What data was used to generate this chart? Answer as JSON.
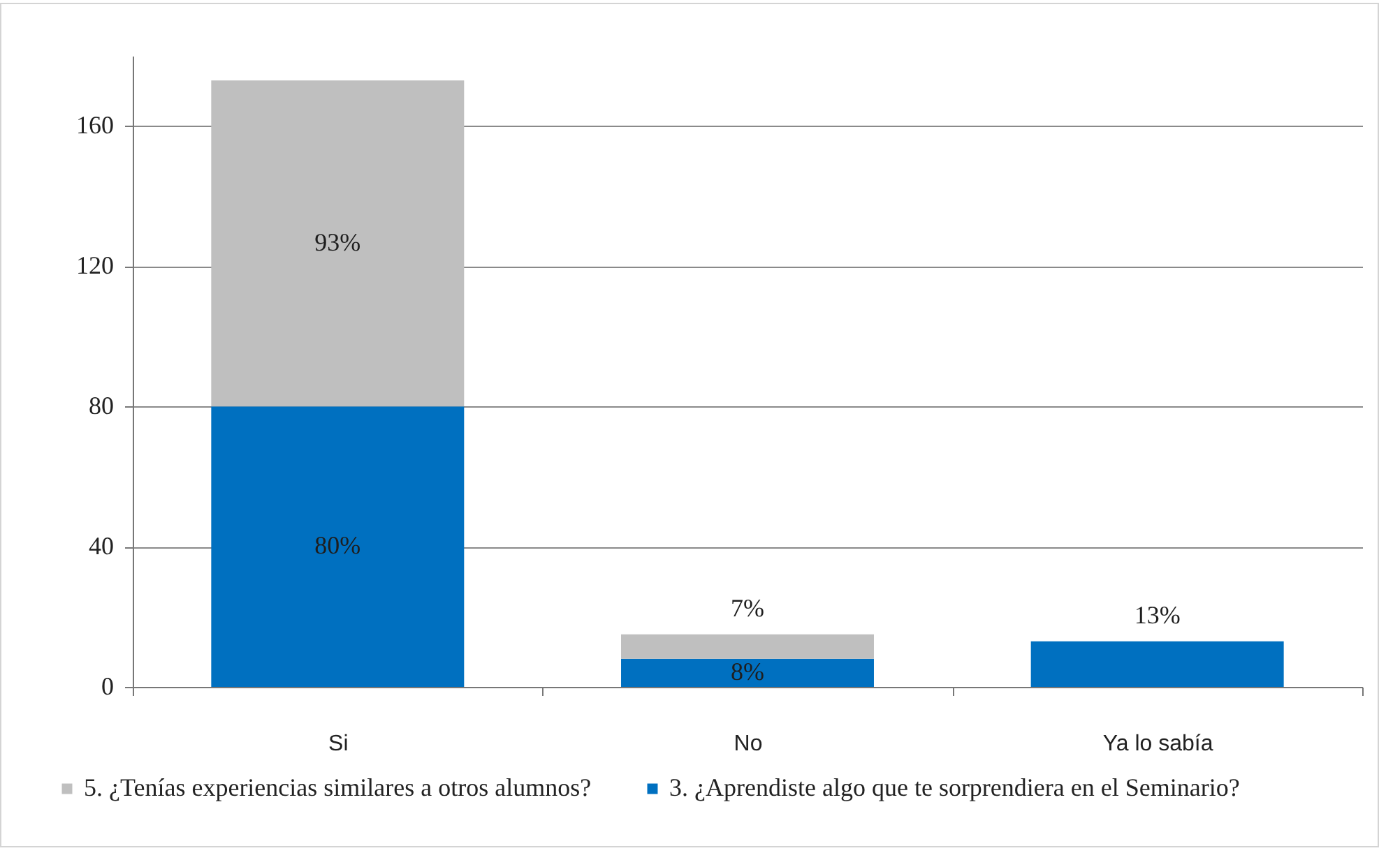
{
  "chart_data": {
    "type": "bar",
    "stacked": true,
    "categories": [
      "Si",
      "No",
      "Ya lo sabía"
    ],
    "series": [
      {
        "name": "3. ¿Aprendiste algo que te sorprendiera en el Seminario?",
        "color": "#0070c0",
        "values": [
          80,
          8,
          13
        ],
        "value_labels": [
          "80%",
          "8%",
          "13%"
        ]
      },
      {
        "name": "5. ¿Tenías experiencias similares a otros alumnos?",
        "color": "#bfbfbf",
        "values": [
          93,
          7,
          null
        ],
        "value_labels": [
          "93%",
          "7%",
          null
        ]
      }
    ],
    "ylim": [
      0,
      180
    ],
    "yticks": [
      0,
      40,
      80,
      120,
      160
    ],
    "grid": "y",
    "legend": "bottom"
  }
}
